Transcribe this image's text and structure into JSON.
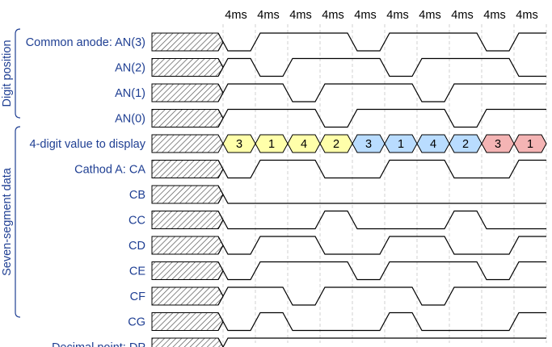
{
  "timing": {
    "slot_labels": [
      "4ms",
      "4ms",
      "4ms",
      "4ms",
      "4ms",
      "4ms",
      "4ms",
      "4ms",
      "4ms",
      "4ms"
    ]
  },
  "groups": {
    "digit_position": "Digit position",
    "seven_segment": "Seven-segment data"
  },
  "signals": [
    {
      "key": "an3",
      "label": "Common anode: AN(3)",
      "type": "wave",
      "levels": [
        0,
        1,
        1,
        1,
        0,
        1,
        1,
        1,
        0,
        1
      ]
    },
    {
      "key": "an2",
      "label": "AN(2)",
      "type": "wave",
      "levels": [
        1,
        0,
        1,
        1,
        1,
        0,
        1,
        1,
        1,
        0
      ]
    },
    {
      "key": "an1",
      "label": "AN(1)",
      "type": "wave",
      "levels": [
        1,
        1,
        0,
        1,
        1,
        1,
        0,
        1,
        1,
        1
      ]
    },
    {
      "key": "an0",
      "label": "AN(0)",
      "type": "wave",
      "levels": [
        1,
        1,
        1,
        0,
        1,
        1,
        1,
        0,
        1,
        1
      ]
    },
    {
      "key": "value",
      "label": "4-digit value to display",
      "type": "bus",
      "values": [
        "3",
        "1",
        "4",
        "2",
        "3",
        "1",
        "4",
        "2",
        "3",
        "1"
      ],
      "colors": [
        "#ffffaa",
        "#ffffaa",
        "#ffffaa",
        "#ffffaa",
        "#b9dcff",
        "#b9dcff",
        "#b9dcff",
        "#b9dcff",
        "#f4b4b4",
        "#f4b4b4"
      ]
    },
    {
      "key": "ca",
      "label": "Cathod A: CA",
      "type": "wave",
      "levels": [
        0,
        1,
        1,
        0,
        0,
        1,
        1,
        0,
        0,
        1
      ]
    },
    {
      "key": "cb",
      "label": "CB",
      "type": "wave",
      "levels": [
        0,
        0,
        0,
        0,
        0,
        0,
        0,
        0,
        0,
        0
      ]
    },
    {
      "key": "cc",
      "label": "CC",
      "type": "wave",
      "levels": [
        0,
        0,
        0,
        1,
        0,
        0,
        0,
        1,
        0,
        0
      ]
    },
    {
      "key": "cd",
      "label": "CD",
      "type": "wave",
      "levels": [
        0,
        1,
        1,
        0,
        0,
        1,
        1,
        0,
        0,
        1
      ]
    },
    {
      "key": "ce",
      "label": "CE",
      "type": "wave",
      "levels": [
        0,
        1,
        1,
        1,
        0,
        1,
        1,
        1,
        0,
        1
      ]
    },
    {
      "key": "cf",
      "label": "CF",
      "type": "wave",
      "levels": [
        1,
        1,
        0,
        1,
        1,
        1,
        0,
        1,
        1,
        1
      ]
    },
    {
      "key": "cg",
      "label": "CG",
      "type": "wave",
      "levels": [
        0,
        1,
        0,
        0,
        0,
        1,
        0,
        0,
        0,
        1
      ]
    },
    {
      "key": "dp",
      "label": "Decimal point: DP",
      "type": "wave",
      "levels": [
        1,
        1,
        1,
        1,
        1,
        1,
        1,
        1,
        1,
        1
      ]
    }
  ],
  "colors": {
    "label_text": "#1f3f93",
    "wave": "#000000",
    "grid": "#d0d0d0",
    "hatch": "#555555"
  }
}
